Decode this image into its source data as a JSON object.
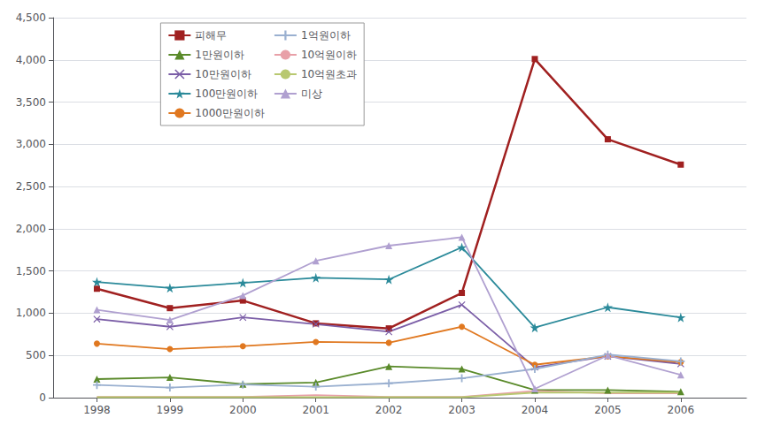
{
  "chart_data": {
    "type": "line",
    "x": [
      1998,
      1999,
      2000,
      2001,
      2002,
      2003,
      2004,
      2005,
      2006
    ],
    "series": [
      {
        "name": "피해무",
        "color": "#a02020",
        "marker": "square",
        "values": [
          1290,
          1060,
          1150,
          880,
          820,
          1240,
          4010,
          3060,
          2760
        ]
      },
      {
        "name": "1만원이하",
        "color": "#5a8a2a",
        "marker": "triangle",
        "values": [
          220,
          240,
          160,
          180,
          370,
          340,
          90,
          90,
          70
        ]
      },
      {
        "name": "10만원이하",
        "color": "#7b5ea7",
        "marker": "x",
        "values": [
          930,
          840,
          950,
          870,
          780,
          1100,
          360,
          490,
          400
        ]
      },
      {
        "name": "100만원이하",
        "color": "#2b8a9a",
        "marker": "star",
        "values": [
          1370,
          1300,
          1360,
          1420,
          1400,
          1780,
          830,
          1070,
          950
        ]
      },
      {
        "name": "1000만원이하",
        "color": "#e07820",
        "marker": "circle",
        "values": [
          640,
          575,
          610,
          660,
          650,
          840,
          390,
          490,
          420
        ]
      },
      {
        "name": "1억원이하",
        "color": "#9ab0d0",
        "marker": "plus",
        "values": [
          150,
          120,
          155,
          130,
          170,
          230,
          340,
          510,
          430
        ]
      },
      {
        "name": "10억원이하",
        "color": "#e8a0a8",
        "marker": "none",
        "values": [
          10,
          10,
          10,
          30,
          10,
          10,
          80,
          50,
          50
        ]
      },
      {
        "name": "10억원초과",
        "color": "#b8c870",
        "marker": "none",
        "values": [
          5,
          5,
          5,
          5,
          5,
          5,
          60,
          60,
          60
        ]
      },
      {
        "name": "미상",
        "color": "#b0a0d0",
        "marker": "triangle",
        "values": [
          1040,
          920,
          1210,
          1620,
          1800,
          1900,
          105,
          500,
          270
        ]
      }
    ],
    "xlim": [
      1997.4,
      2006.9
    ],
    "xticks": [
      1998,
      1999,
      2000,
      2001,
      2002,
      2003,
      2004,
      2005,
      2006
    ],
    "ylim": [
      0,
      4500
    ],
    "yticks": [
      0,
      500,
      {
        "value": 1000,
        "label": "1,000"
      },
      {
        "value": 1500,
        "label": "1,500"
      },
      {
        "value": 2000,
        "label": "2,000"
      },
      {
        "value": 2500,
        "label": "2,500"
      },
      {
        "value": 3000,
        "label": "3,000"
      },
      {
        "value": 3500,
        "label": "3,500"
      },
      {
        "value": 4000,
        "label": "4,000"
      },
      {
        "value": 4500,
        "label": "4,500"
      }
    ],
    "grid": "y",
    "legend": "upper left"
  }
}
